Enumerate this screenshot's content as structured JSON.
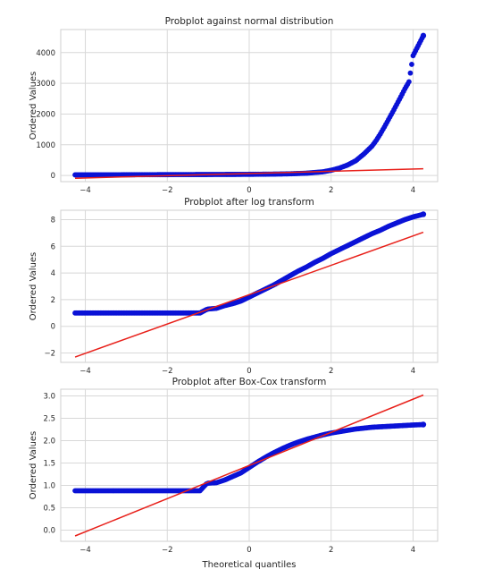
{
  "colors": {
    "points": "#0a12d6",
    "fit_line": "#e8201a",
    "grid": "#d8d8d8",
    "frame": "#cfcfcf",
    "background": "#ffffff"
  },
  "chart_data": [
    {
      "type": "scatter",
      "title": "Probplot against normal distribution",
      "xlabel": "",
      "ylabel": "Ordered Values",
      "xlim": [
        -4.6,
        4.6
      ],
      "ylim": [
        -200,
        4750
      ],
      "xticks": [
        -4,
        -2,
        0,
        2,
        4
      ],
      "xtick_labels": [
        "−4",
        "−2",
        "0",
        "2",
        "4"
      ],
      "yticks": [
        0,
        1000,
        2000,
        3000,
        4000
      ],
      "ytick_labels": [
        "0",
        "1000",
        "2000",
        "3000",
        "4000"
      ],
      "grid": true,
      "series": [
        {
          "kind": "points",
          "x": [
            -4.25,
            -3.9,
            -3.6,
            -3.3,
            -3.0,
            -2.6,
            -2.2,
            -1.8,
            -1.4,
            -1.0,
            -0.6,
            -0.2,
            0.2,
            0.6,
            1.0,
            1.4,
            1.8,
            2.0,
            2.2,
            2.4,
            2.6,
            2.8,
            3.0,
            3.1,
            3.2,
            3.3,
            3.4,
            3.5,
            3.6,
            3.7,
            3.8,
            3.9,
            4.0,
            4.25
          ],
          "y": [
            20,
            20,
            22,
            22,
            24,
            25,
            27,
            29,
            30,
            32,
            34,
            36,
            40,
            45,
            55,
            75,
            120,
            170,
            240,
            340,
            480,
            700,
            960,
            1140,
            1350,
            1580,
            1820,
            2060,
            2310,
            2560,
            2820,
            3050,
            3900,
            4550
          ]
        },
        {
          "kind": "line",
          "x": [
            -4.25,
            4.25
          ],
          "y": [
            -90,
            220
          ]
        }
      ]
    },
    {
      "type": "scatter",
      "title": "Probplot after log transform",
      "xlabel": "",
      "ylabel": "Ordered Values",
      "xlim": [
        -4.6,
        4.6
      ],
      "ylim": [
        -2.7,
        8.7
      ],
      "xticks": [
        -4,
        -2,
        0,
        2,
        4
      ],
      "xtick_labels": [
        "−4",
        "−2",
        "0",
        "2",
        "4"
      ],
      "yticks": [
        -2,
        0,
        2,
        4,
        6,
        8
      ],
      "ytick_labels": [
        "−2",
        "0",
        "2",
        "4",
        "6",
        "8"
      ],
      "grid": true,
      "series": [
        {
          "kind": "points",
          "x": [
            -4.25,
            -3.9,
            -3.6,
            -3.3,
            -3.0,
            -2.6,
            -2.2,
            -1.8,
            -1.4,
            -1.2,
            -1.05,
            -1.0,
            -0.8,
            -0.6,
            -0.4,
            -0.2,
            0.0,
            0.2,
            0.4,
            0.6,
            0.8,
            1.0,
            1.2,
            1.4,
            1.6,
            1.8,
            2.0,
            2.2,
            2.4,
            2.6,
            2.8,
            3.0,
            3.2,
            3.4,
            3.6,
            3.8,
            4.0,
            4.25
          ],
          "y": [
            1.0,
            1.0,
            1.0,
            1.0,
            1.0,
            1.0,
            1.0,
            1.0,
            1.0,
            1.0,
            1.25,
            1.3,
            1.35,
            1.55,
            1.7,
            1.9,
            2.2,
            2.5,
            2.8,
            3.1,
            3.45,
            3.8,
            4.15,
            4.45,
            4.8,
            5.1,
            5.45,
            5.75,
            6.05,
            6.35,
            6.65,
            6.95,
            7.2,
            7.5,
            7.75,
            8.0,
            8.2,
            8.4
          ]
        },
        {
          "kind": "line",
          "x": [
            -4.25,
            4.25
          ],
          "y": [
            -2.3,
            7.05
          ]
        }
      ]
    },
    {
      "type": "scatter",
      "title": "Probplot after Box-Cox transform",
      "xlabel": "Theoretical quantiles",
      "ylabel": "Ordered Values",
      "xlim": [
        -4.6,
        4.6
      ],
      "ylim": [
        -0.25,
        3.15
      ],
      "xticks": [
        -4,
        -2,
        0,
        2,
        4
      ],
      "xtick_labels": [
        "−4",
        "−2",
        "0",
        "2",
        "4"
      ],
      "yticks": [
        0.0,
        0.5,
        1.0,
        1.5,
        2.0,
        2.5,
        3.0
      ],
      "ytick_labels": [
        "0.0",
        "0.5",
        "1.0",
        "1.5",
        "2.0",
        "2.5",
        "3.0"
      ],
      "grid": true,
      "series": [
        {
          "kind": "points",
          "x": [
            -4.25,
            -3.9,
            -3.6,
            -3.3,
            -3.0,
            -2.6,
            -2.2,
            -1.8,
            -1.4,
            -1.2,
            -1.05,
            -1.0,
            -0.8,
            -0.6,
            -0.4,
            -0.2,
            0.0,
            0.2,
            0.4,
            0.6,
            0.8,
            1.0,
            1.2,
            1.4,
            1.6,
            1.8,
            2.0,
            2.2,
            2.4,
            2.6,
            2.8,
            3.0,
            3.2,
            3.4,
            3.6,
            3.8,
            4.0,
            4.25
          ],
          "y": [
            0.88,
            0.88,
            0.88,
            0.88,
            0.88,
            0.88,
            0.88,
            0.88,
            0.88,
            0.88,
            1.03,
            1.05,
            1.06,
            1.12,
            1.2,
            1.28,
            1.4,
            1.52,
            1.63,
            1.73,
            1.82,
            1.9,
            1.97,
            2.03,
            2.08,
            2.13,
            2.17,
            2.2,
            2.23,
            2.26,
            2.28,
            2.3,
            2.31,
            2.32,
            2.33,
            2.34,
            2.35,
            2.36
          ]
        },
        {
          "kind": "line",
          "x": [
            -4.25,
            4.25
          ],
          "y": [
            -0.13,
            3.02
          ]
        }
      ]
    }
  ]
}
